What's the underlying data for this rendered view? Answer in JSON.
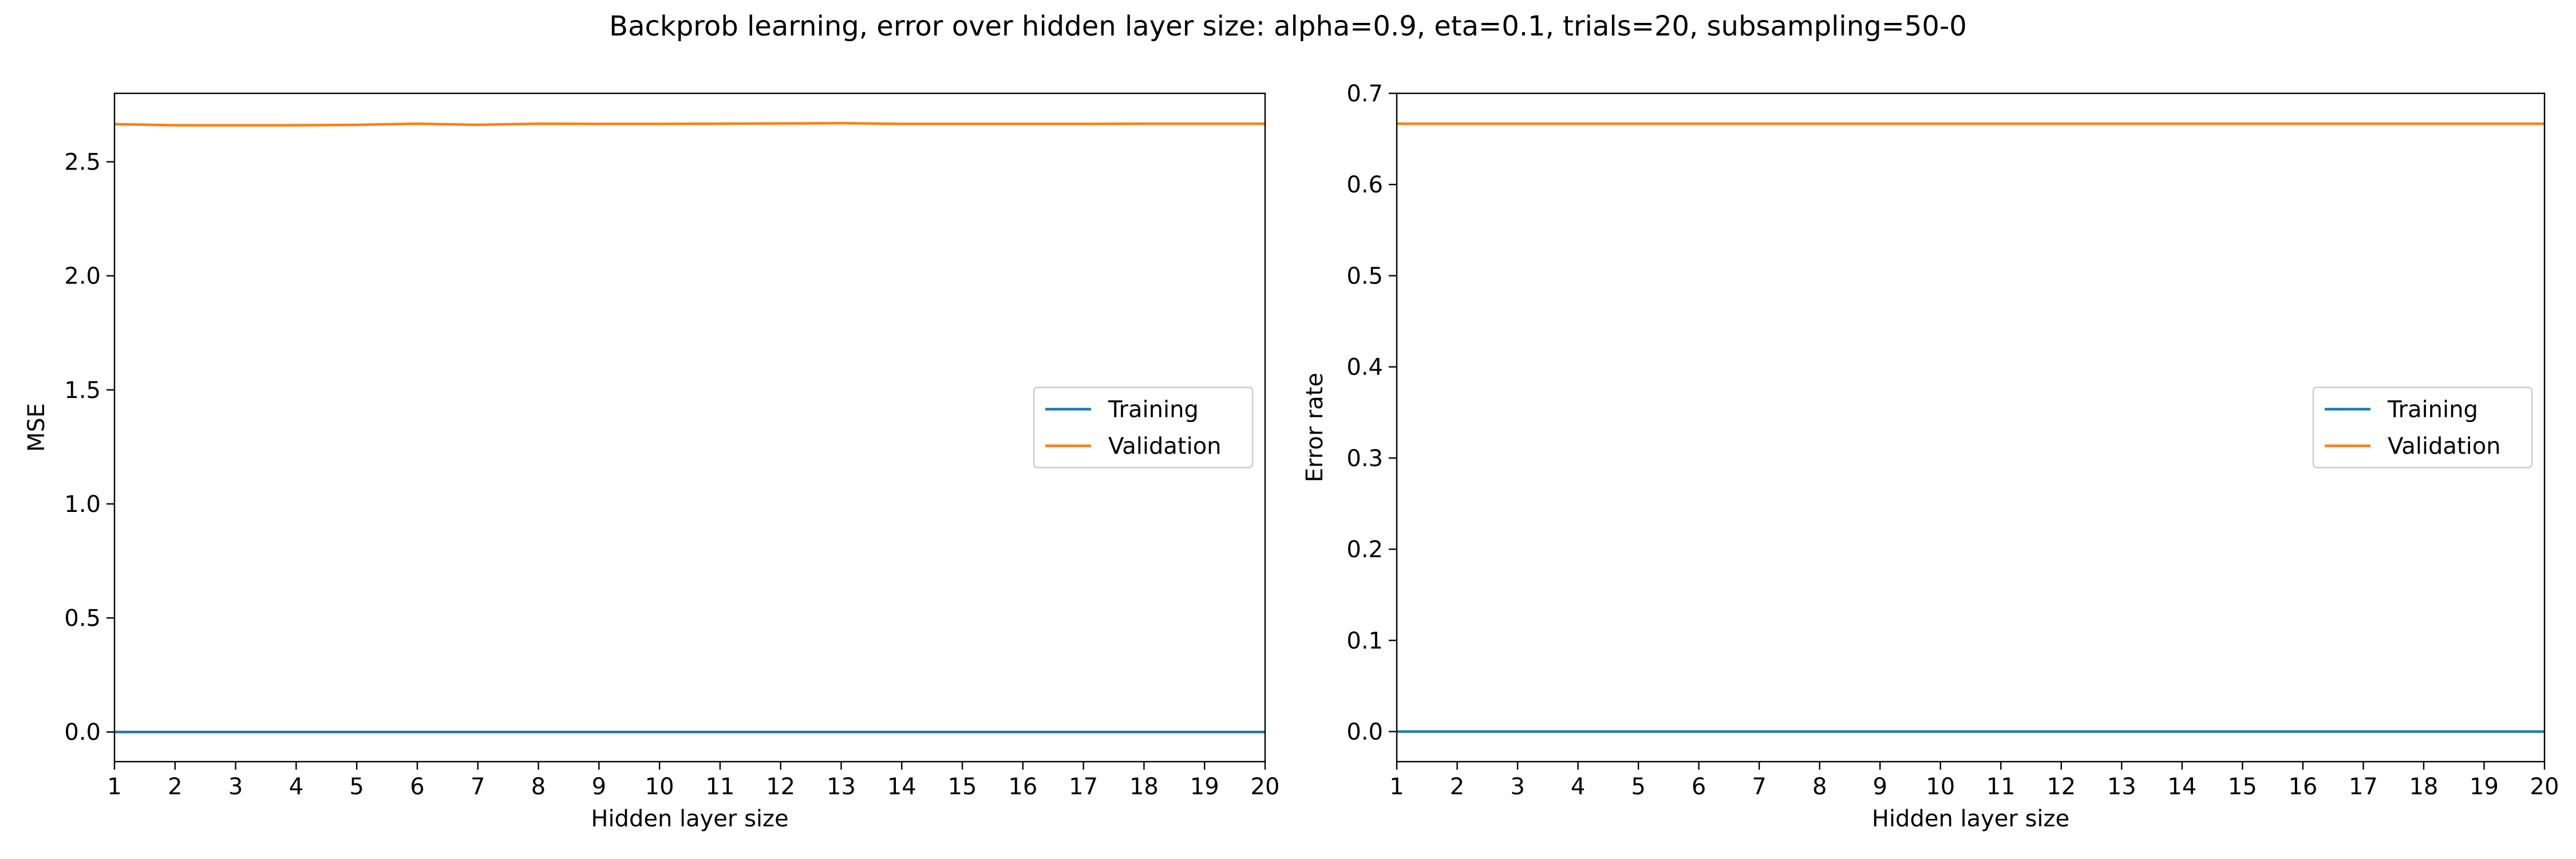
{
  "figure": {
    "suptitle": "Backprob learning, error over hidden layer size: alpha=0.9, eta=0.1, trials=20, subsampling=50-0"
  },
  "chart_data": [
    {
      "type": "line",
      "xlabel": "Hidden layer size",
      "ylabel": "MSE",
      "xlim": [
        1,
        20
      ],
      "ylim": [
        -0.13,
        2.8
      ],
      "xticks": [
        1,
        2,
        3,
        4,
        5,
        6,
        7,
        8,
        9,
        10,
        11,
        12,
        13,
        14,
        15,
        16,
        17,
        18,
        19,
        20
      ],
      "yticks": [
        0.0,
        0.5,
        1.0,
        1.5,
        2.0,
        2.5
      ],
      "ytick_labels": [
        "0.0",
        "0.5",
        "1.0",
        "1.5",
        "2.0",
        "2.5"
      ],
      "grid": false,
      "legend": "center-right",
      "x": [
        1,
        2,
        3,
        4,
        5,
        6,
        7,
        8,
        9,
        10,
        11,
        12,
        13,
        14,
        15,
        16,
        17,
        18,
        19,
        20
      ],
      "series": [
        {
          "name": "Training",
          "color": "#1f77b4",
          "values": [
            0.0,
            0.0,
            0.0,
            0.0,
            0.0,
            0.0,
            0.0,
            0.0,
            0.0,
            0.0,
            0.0,
            0.0,
            0.0,
            0.0,
            0.0,
            0.0,
            0.0,
            0.0,
            0.0,
            0.0
          ]
        },
        {
          "name": "Validation",
          "color": "#ff7f0e",
          "values": [
            2.665,
            2.66,
            2.66,
            2.66,
            2.662,
            2.667,
            2.662,
            2.667,
            2.666,
            2.666,
            2.667,
            2.668,
            2.669,
            2.666,
            2.666,
            2.666,
            2.666,
            2.667,
            2.667,
            2.667
          ]
        }
      ]
    },
    {
      "type": "line",
      "xlabel": "Hidden layer size",
      "ylabel": "Error rate",
      "xlim": [
        1,
        20
      ],
      "ylim": [
        -0.033,
        0.7
      ],
      "xticks": [
        1,
        2,
        3,
        4,
        5,
        6,
        7,
        8,
        9,
        10,
        11,
        12,
        13,
        14,
        15,
        16,
        17,
        18,
        19,
        20
      ],
      "yticks": [
        0.0,
        0.1,
        0.2,
        0.3,
        0.4,
        0.5,
        0.6,
        0.7
      ],
      "ytick_labels": [
        "0.0",
        "0.1",
        "0.2",
        "0.3",
        "0.4",
        "0.5",
        "0.6",
        "0.7"
      ],
      "grid": false,
      "legend": "center-right",
      "x": [
        1,
        2,
        3,
        4,
        5,
        6,
        7,
        8,
        9,
        10,
        11,
        12,
        13,
        14,
        15,
        16,
        17,
        18,
        19,
        20
      ],
      "series": [
        {
          "name": "Training",
          "color": "#1f77b4",
          "values": [
            0.0,
            0.0,
            0.0,
            0.0,
            0.0,
            0.0,
            0.0,
            0.0,
            0.0,
            0.0,
            0.0,
            0.0,
            0.0,
            0.0,
            0.0,
            0.0,
            0.0,
            0.0,
            0.0,
            0.0
          ]
        },
        {
          "name": "Validation",
          "color": "#ff7f0e",
          "values": [
            0.6667,
            0.6667,
            0.6667,
            0.6667,
            0.6667,
            0.6667,
            0.6667,
            0.6667,
            0.6667,
            0.6667,
            0.6667,
            0.6667,
            0.6667,
            0.6667,
            0.6667,
            0.6667,
            0.6667,
            0.6667,
            0.6667,
            0.6667
          ]
        }
      ]
    }
  ]
}
